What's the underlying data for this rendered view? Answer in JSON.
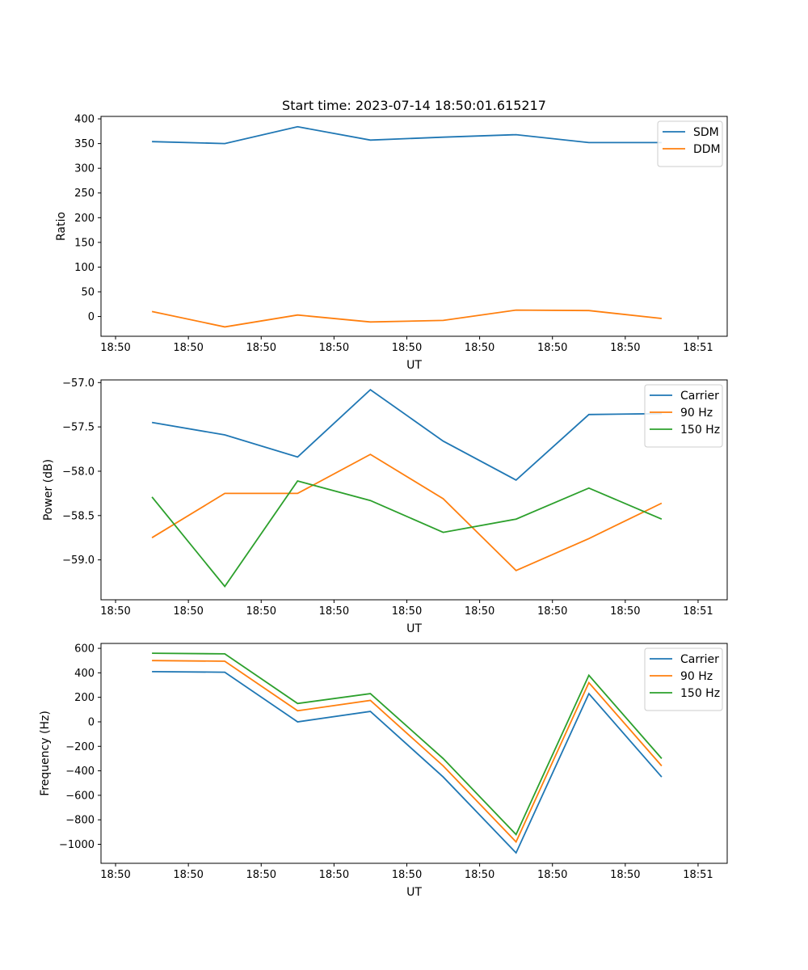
{
  "chart_data": [
    {
      "type": "line",
      "title": "Start time: 2023-07-14 18:50:01.615217",
      "xlabel": "UT",
      "ylabel": "Ratio",
      "xlim": [
        0,
        8.6
      ],
      "ylim": [
        -40,
        405
      ],
      "xticks": [
        0.2,
        1.2,
        2.2,
        3.2,
        4.2,
        5.2,
        6.2,
        7.2,
        8.2
      ],
      "xtick_labels": [
        "18:50",
        "18:50",
        "18:50",
        "18:50",
        "18:50",
        "18:50",
        "18:50",
        "18:50",
        "18:51"
      ],
      "yticks": [
        0,
        50,
        100,
        150,
        200,
        250,
        300,
        350,
        400
      ],
      "ytick_labels": [
        "0",
        "50",
        "100",
        "150",
        "200",
        "250",
        "300",
        "350",
        "400"
      ],
      "legend_position": "top-right",
      "x": [
        0.7,
        1.7,
        2.7,
        3.7,
        4.7,
        5.7,
        6.7,
        7.7
      ],
      "series": [
        {
          "name": "SDM",
          "color": "#1f77b4",
          "values": [
            354,
            350,
            384,
            357,
            363,
            368,
            352,
            352
          ]
        },
        {
          "name": "DDM",
          "color": "#ff7f0e",
          "values": [
            10,
            -21,
            3,
            -11,
            -8,
            13,
            12,
            -4
          ]
        }
      ]
    },
    {
      "type": "line",
      "title": "",
      "xlabel": "UT",
      "ylabel": "Power (dB)",
      "xlim": [
        0,
        8.6
      ],
      "ylim": [
        -59.45,
        -56.97
      ],
      "xticks": [
        0.2,
        1.2,
        2.2,
        3.2,
        4.2,
        5.2,
        6.2,
        7.2,
        8.2
      ],
      "xtick_labels": [
        "18:50",
        "18:50",
        "18:50",
        "18:50",
        "18:50",
        "18:50",
        "18:50",
        "18:50",
        "18:51"
      ],
      "yticks": [
        -59.0,
        -58.5,
        -58.0,
        -57.5,
        -57.0
      ],
      "ytick_labels": [
        "−59.0",
        "−58.5",
        "−58.0",
        "−57.5",
        "−57.0"
      ],
      "legend_position": "top-right",
      "x": [
        0.7,
        1.7,
        2.7,
        3.7,
        4.7,
        5.7,
        6.7,
        7.7
      ],
      "series": [
        {
          "name": "Carrier",
          "color": "#1f77b4",
          "values": [
            -57.45,
            -57.59,
            -57.84,
            -57.08,
            -57.66,
            -58.1,
            -57.36,
            -57.35
          ]
        },
        {
          "name": "90 Hz",
          "color": "#ff7f0e",
          "values": [
            -58.75,
            -58.25,
            -58.25,
            -57.81,
            -58.31,
            -59.12,
            -58.76,
            -58.36
          ]
        },
        {
          "name": "150 Hz",
          "color": "#2ca02c",
          "values": [
            -58.29,
            -59.3,
            -58.11,
            -58.33,
            -58.69,
            -58.54,
            -58.19,
            -58.54
          ]
        }
      ]
    },
    {
      "type": "line",
      "title": "",
      "xlabel": "UT",
      "ylabel": "Frequency (Hz)",
      "xlim": [
        0,
        8.6
      ],
      "ylim": [
        -1155,
        640
      ],
      "xticks": [
        0.2,
        1.2,
        2.2,
        3.2,
        4.2,
        5.2,
        6.2,
        7.2,
        8.2
      ],
      "xtick_labels": [
        "18:50",
        "18:50",
        "18:50",
        "18:50",
        "18:50",
        "18:50",
        "18:50",
        "18:50",
        "18:51"
      ],
      "yticks": [
        -1000,
        -800,
        -600,
        -400,
        -200,
        0,
        200,
        400,
        600
      ],
      "ytick_labels": [
        "−1000",
        "−800",
        "−600",
        "−400",
        "−200",
        "0",
        "200",
        "400",
        "600"
      ],
      "legend_position": "top-right",
      "x": [
        0.7,
        1.7,
        2.7,
        3.7,
        4.7,
        5.7,
        6.7,
        7.7
      ],
      "series": [
        {
          "name": "Carrier",
          "color": "#1f77b4",
          "values": [
            410,
            405,
            0,
            85,
            -450,
            -1070,
            230,
            -450
          ]
        },
        {
          "name": "90 Hz",
          "color": "#ff7f0e",
          "values": [
            500,
            495,
            90,
            175,
            -360,
            -980,
            320,
            -360
          ]
        },
        {
          "name": "150 Hz",
          "color": "#2ca02c",
          "values": [
            560,
            555,
            150,
            230,
            -300,
            -920,
            380,
            -300
          ]
        }
      ]
    }
  ]
}
